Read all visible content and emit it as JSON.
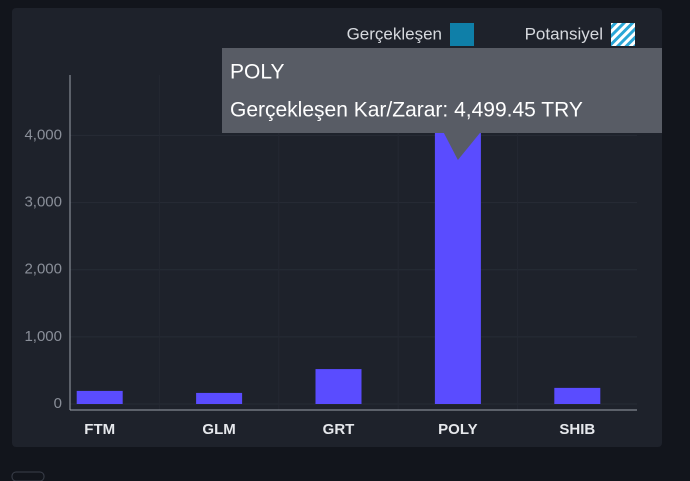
{
  "chart_data": {
    "type": "bar",
    "categories": [
      "FTM",
      "GLM",
      "GRT",
      "POLY",
      "SHIB"
    ],
    "series": [
      {
        "name": "Gerçekleşen",
        "color": "#5a4cff",
        "legend_color": "#0f7fa8",
        "values": [
          195,
          165,
          520,
          4499.45,
          240
        ]
      },
      {
        "name": "Potansiyel",
        "color": "#2aa6d6",
        "values": [
          null,
          null,
          null,
          null,
          null
        ]
      }
    ],
    "ylim": [
      0,
      4900
    ],
    "yticks": [
      0,
      {
        "value": 1000,
        "label": "1,000"
      },
      {
        "value": 2000,
        "label": "2,000"
      },
      {
        "value": 3000,
        "label": "3,000"
      },
      {
        "value": 4000,
        "label": "4,000"
      }
    ],
    "grid": true,
    "legend": "top-right",
    "tooltip": {
      "title": "POLY",
      "label": "Gerçekleşen Kar/Zarar: 4,499.45 TRY"
    }
  }
}
